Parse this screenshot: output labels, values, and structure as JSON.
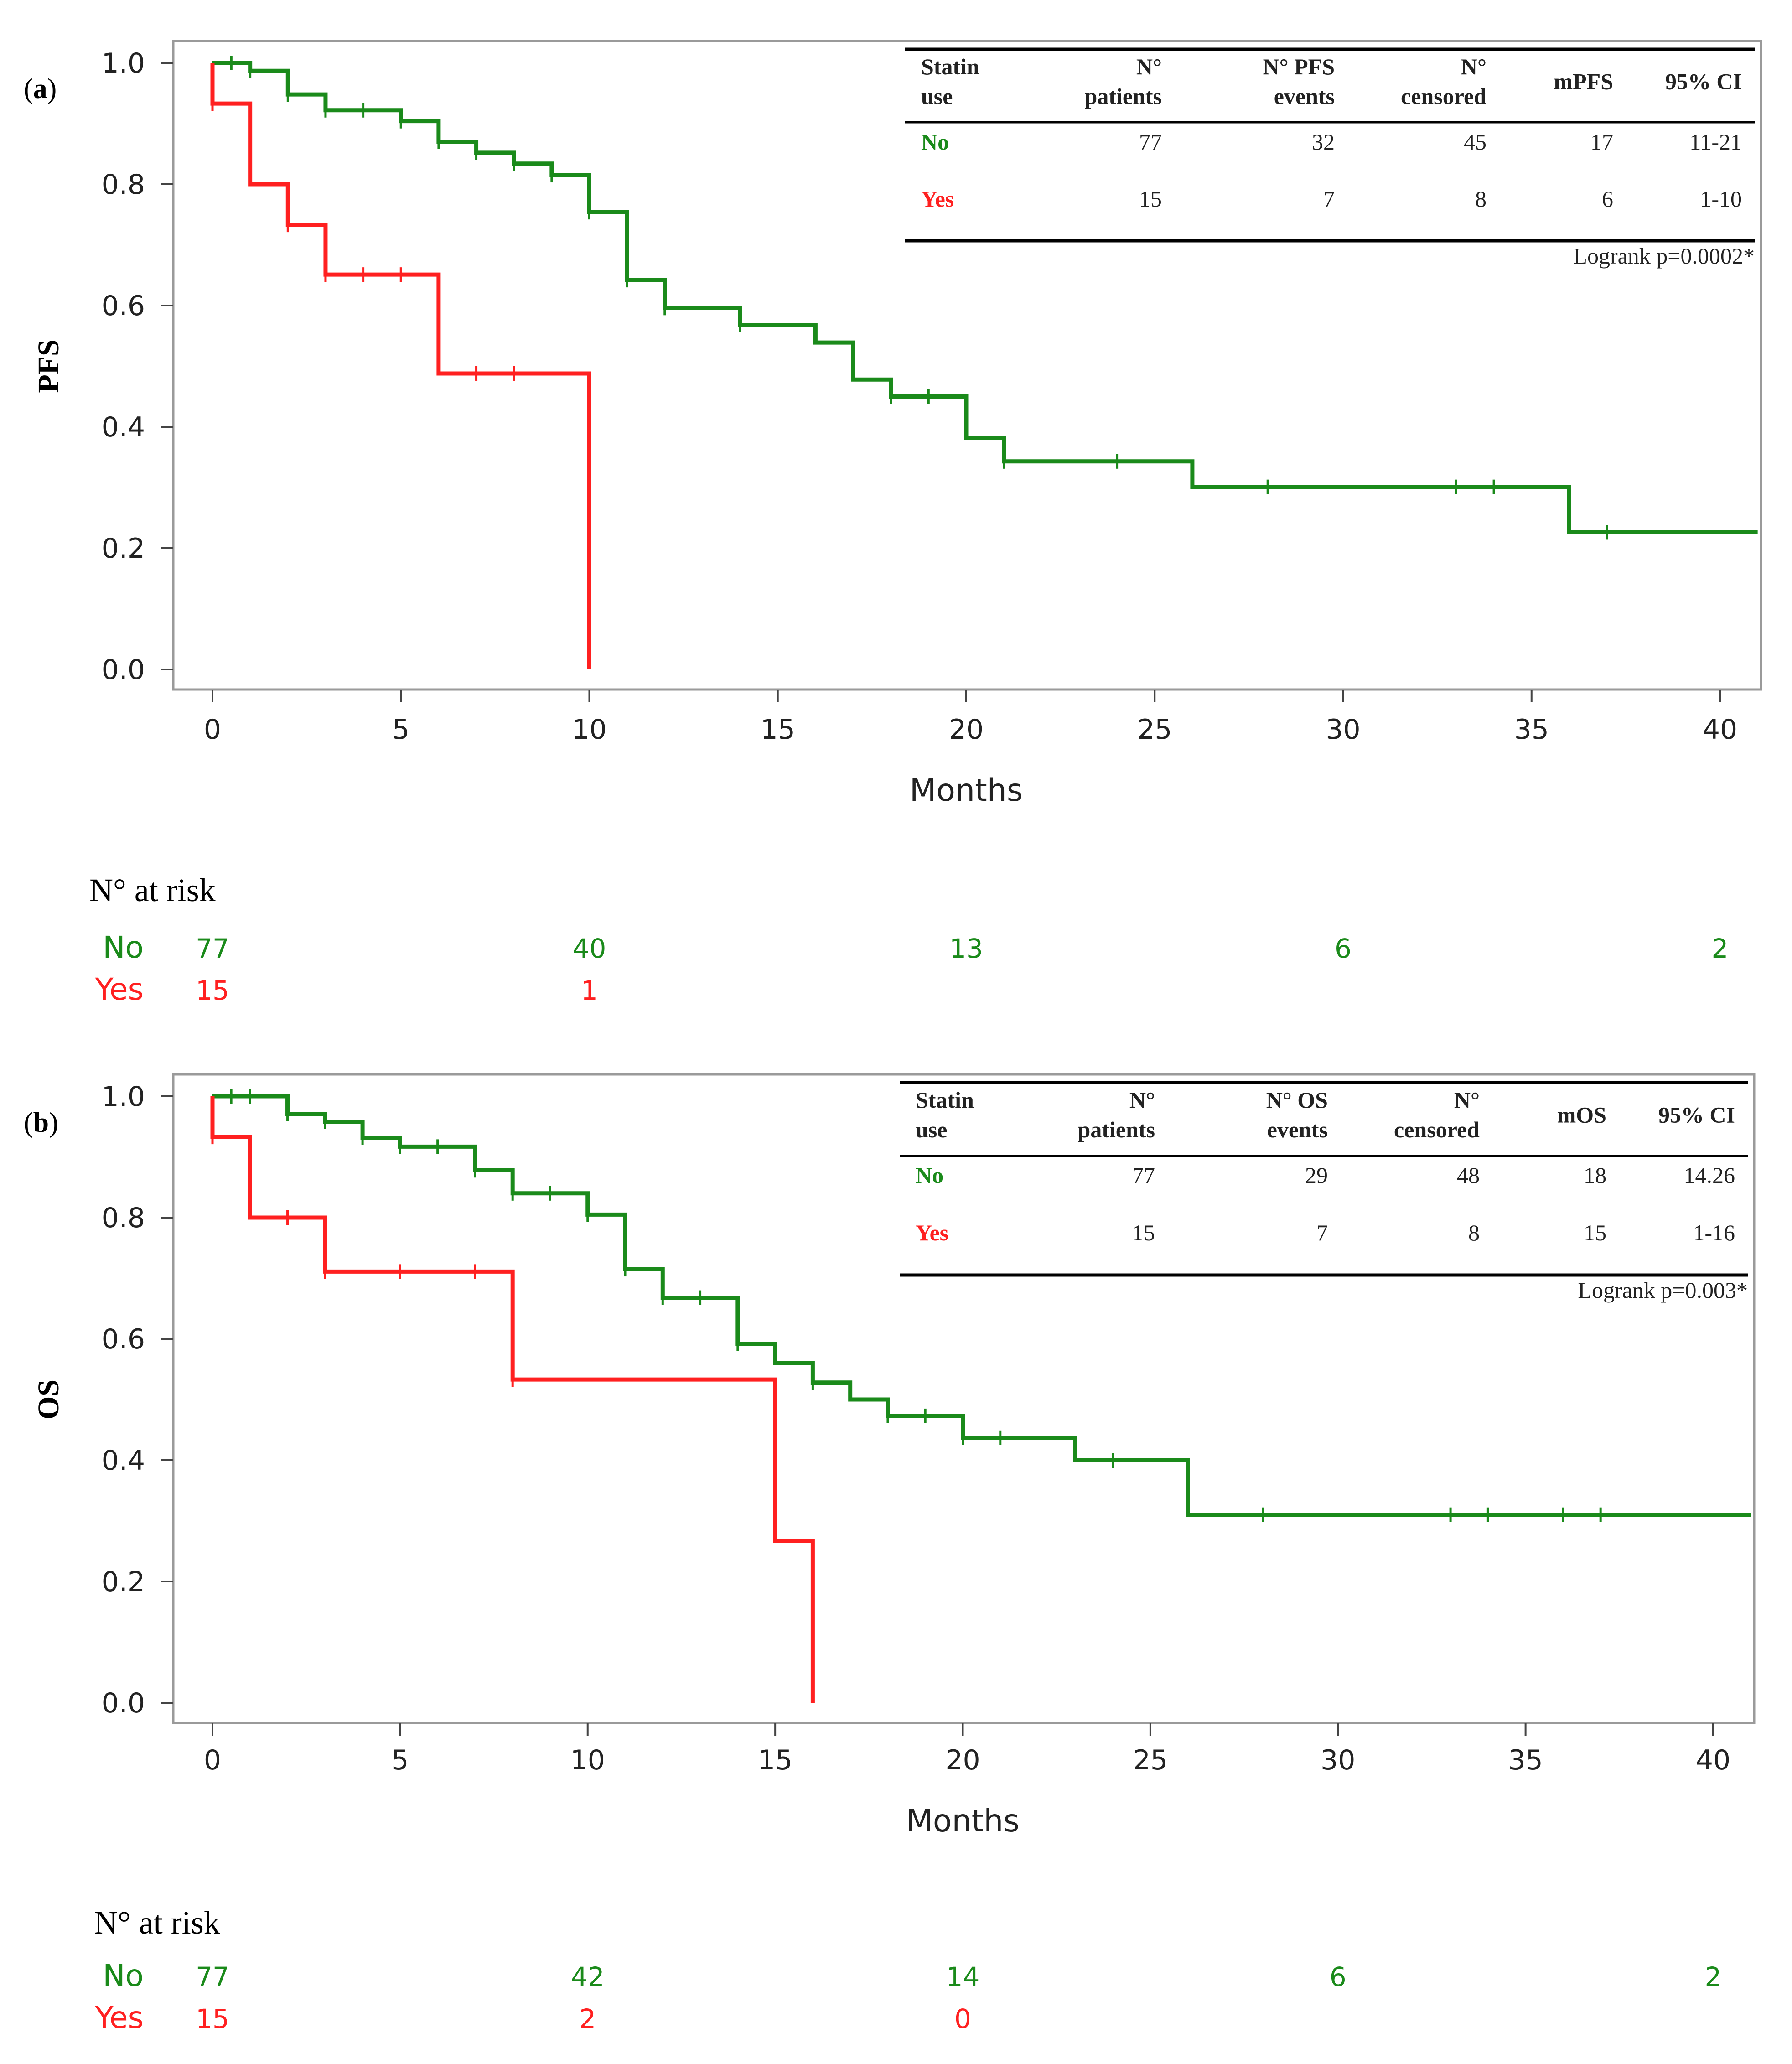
{
  "colors": {
    "no": "#1a8a1a",
    "yes": "#ff2020",
    "frame": "#9a9a9a",
    "axis": "#444444"
  },
  "chart_data": [
    {
      "type": "line",
      "panel": "(a)",
      "ylabel": "PFS",
      "xlabel": "Months",
      "xlim": [
        0,
        41
      ],
      "ylim": [
        0,
        1
      ],
      "xticks": [
        "0",
        "5",
        "10",
        "15",
        "20",
        "25",
        "30",
        "35",
        "40"
      ],
      "yticks": [
        "0.0",
        "0.2",
        "0.4",
        "0.6",
        "0.8",
        "1.0"
      ],
      "series": [
        {
          "name": "No",
          "color": "#1a8a1a",
          "steps": [
            [
              0,
              1.0
            ],
            [
              1,
              0.987
            ],
            [
              2,
              0.948
            ],
            [
              3,
              0.922
            ],
            [
              5,
              0.904
            ],
            [
              6,
              0.87
            ],
            [
              7,
              0.852
            ],
            [
              8,
              0.834
            ],
            [
              9,
              0.815
            ],
            [
              10,
              0.754
            ],
            [
              11,
              0.642
            ],
            [
              12,
              0.596
            ],
            [
              14,
              0.568
            ],
            [
              16,
              0.539
            ],
            [
              17,
              0.478
            ],
            [
              18,
              0.45
            ],
            [
              20,
              0.382
            ],
            [
              21,
              0.343
            ],
            [
              26,
              0.301
            ],
            [
              36,
              0.226
            ],
            [
              41,
              0.226
            ]
          ],
          "censored": [
            [
              0.5,
              1.0
            ],
            [
              1,
              0.987
            ],
            [
              2,
              0.948
            ],
            [
              3,
              0.922
            ],
            [
              4,
              0.922
            ],
            [
              5,
              0.904
            ],
            [
              6,
              0.87
            ],
            [
              7,
              0.852
            ],
            [
              8,
              0.834
            ],
            [
              9,
              0.815
            ],
            [
              10,
              0.754
            ],
            [
              11,
              0.642
            ],
            [
              12,
              0.596
            ],
            [
              14,
              0.568
            ],
            [
              18,
              0.45
            ],
            [
              19,
              0.45
            ],
            [
              21,
              0.343
            ],
            [
              24,
              0.343
            ],
            [
              28,
              0.301
            ],
            [
              33,
              0.301
            ],
            [
              34,
              0.301
            ],
            [
              37,
              0.226
            ]
          ]
        },
        {
          "name": "Yes",
          "color": "#ff2020",
          "steps": [
            [
              0,
              1.0
            ],
            [
              0,
              0.933
            ],
            [
              1,
              0.8
            ],
            [
              2,
              0.733
            ],
            [
              3,
              0.651
            ],
            [
              6,
              0.488
            ],
            [
              10,
              0.0
            ]
          ],
          "censored": [
            [
              0,
              0.933
            ],
            [
              2,
              0.733
            ],
            [
              3,
              0.651
            ],
            [
              4,
              0.651
            ],
            [
              5,
              0.651
            ],
            [
              7,
              0.488
            ],
            [
              8,
              0.488
            ]
          ]
        }
      ],
      "table": {
        "headers": [
          [
            "Statin",
            "use"
          ],
          [
            "N°",
            "patients"
          ],
          [
            "N° PFS",
            "events"
          ],
          [
            "N°",
            "censored"
          ],
          [
            "mPFS"
          ],
          [
            "95% CI"
          ]
        ],
        "rows": [
          {
            "group": "No",
            "cells": [
              "77",
              "32",
              "45",
              "17",
              "11-21"
            ]
          },
          {
            "group": "Yes",
            "cells": [
              "15",
              "7",
              "8",
              "6",
              "1-10"
            ]
          }
        ],
        "note": "Logrank p=0.0002*"
      },
      "risk": {
        "title": "N° at risk",
        "times": [
          0,
          10,
          20,
          30,
          40
        ],
        "rows": [
          {
            "label": "No",
            "values": [
              "77",
              "40",
              "13",
              "6",
              "2"
            ]
          },
          {
            "label": "Yes",
            "values": [
              "15",
              "1",
              "",
              "",
              ""
            ]
          }
        ]
      }
    },
    {
      "type": "line",
      "panel": "(b)",
      "ylabel": "OS",
      "xlabel": "Months",
      "xlim": [
        0,
        41
      ],
      "ylim": [
        0,
        1
      ],
      "xticks": [
        "0",
        "5",
        "10",
        "15",
        "20",
        "25",
        "30",
        "35",
        "40"
      ],
      "yticks": [
        "0.0",
        "0.2",
        "0.4",
        "0.6",
        "0.8",
        "1.0"
      ],
      "series": [
        {
          "name": "No",
          "color": "#1a8a1a",
          "steps": [
            [
              0,
              1.0
            ],
            [
              2,
              0.971
            ],
            [
              3,
              0.958
            ],
            [
              4,
              0.932
            ],
            [
              5,
              0.917
            ],
            [
              7,
              0.878
            ],
            [
              8,
              0.84
            ],
            [
              10,
              0.805
            ],
            [
              11,
              0.715
            ],
            [
              12,
              0.668
            ],
            [
              14,
              0.592
            ],
            [
              15,
              0.56
            ],
            [
              16,
              0.528
            ],
            [
              17,
              0.5
            ],
            [
              18,
              0.473
            ],
            [
              20,
              0.437
            ],
            [
              23,
              0.4
            ],
            [
              26,
              0.31
            ],
            [
              41,
              0.31
            ]
          ],
          "censored": [
            [
              0.5,
              1.0
            ],
            [
              1,
              1.0
            ],
            [
              2,
              0.971
            ],
            [
              3,
              0.958
            ],
            [
              4,
              0.932
            ],
            [
              5,
              0.917
            ],
            [
              6,
              0.917
            ],
            [
              7,
              0.878
            ],
            [
              8,
              0.84
            ],
            [
              9,
              0.84
            ],
            [
              10,
              0.805
            ],
            [
              11,
              0.715
            ],
            [
              12,
              0.668
            ],
            [
              13,
              0.668
            ],
            [
              14,
              0.592
            ],
            [
              16,
              0.528
            ],
            [
              18,
              0.473
            ],
            [
              19,
              0.473
            ],
            [
              20,
              0.437
            ],
            [
              21,
              0.437
            ],
            [
              24,
              0.4
            ],
            [
              28,
              0.31
            ],
            [
              33,
              0.31
            ],
            [
              34,
              0.31
            ],
            [
              36,
              0.31
            ],
            [
              37,
              0.31
            ]
          ]
        },
        {
          "name": "Yes",
          "color": "#ff2020",
          "steps": [
            [
              0,
              1.0
            ],
            [
              0,
              0.933
            ],
            [
              1,
              0.8
            ],
            [
              3,
              0.711
            ],
            [
              8,
              0.533
            ],
            [
              15,
              0.267
            ],
            [
              16,
              0.0
            ]
          ],
          "censored": [
            [
              0,
              0.933
            ],
            [
              2,
              0.8
            ],
            [
              3,
              0.711
            ],
            [
              5,
              0.711
            ],
            [
              7,
              0.711
            ],
            [
              8,
              0.533
            ]
          ]
        }
      ],
      "table": {
        "headers": [
          [
            "Statin",
            "use"
          ],
          [
            "N°",
            "patients"
          ],
          [
            "N° OS",
            "events"
          ],
          [
            "N°",
            "censored"
          ],
          [
            "mOS"
          ],
          [
            "95% CI"
          ]
        ],
        "rows": [
          {
            "group": "No",
            "cells": [
              "77",
              "29",
              "48",
              "18",
              "14.26"
            ]
          },
          {
            "group": "Yes",
            "cells": [
              "15",
              "7",
              "8",
              "15",
              "1-16"
            ]
          }
        ],
        "note": "Logrank p=0.003*"
      },
      "risk": {
        "title": "N° at risk",
        "times": [
          0,
          10,
          20,
          30,
          40
        ],
        "rows": [
          {
            "label": "No",
            "values": [
              "77",
              "42",
              "14",
              "6",
              "2"
            ]
          },
          {
            "label": "Yes",
            "values": [
              "15",
              "2",
              "0",
              "",
              ""
            ]
          }
        ]
      }
    }
  ]
}
